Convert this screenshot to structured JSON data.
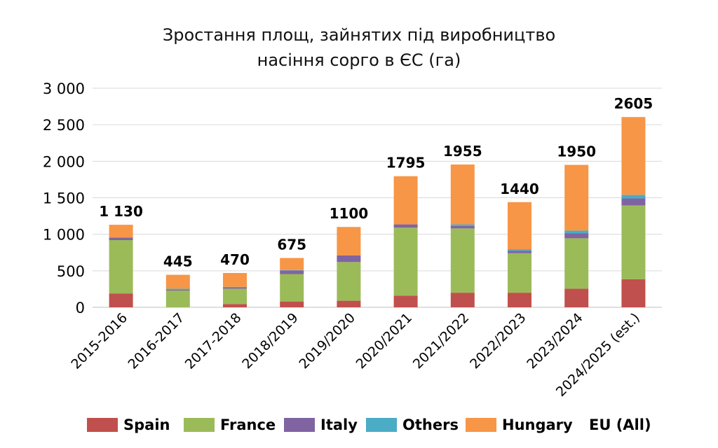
{
  "chart_data": {
    "type": "bar",
    "stacked": true,
    "title_line1": "Зростання площ, зайнятих під виробництво",
    "title_line2": "насіння сорго в ЄС (га)",
    "categories": [
      "2015-2016",
      "2016-2017",
      "2017-2018",
      "2018/2019",
      "2019/2020",
      "2020/2021",
      "2021/2022",
      "2022/2023",
      "2023/2024",
      "2024/2025 (est.)"
    ],
    "series": [
      {
        "name": "Spain",
        "color": "#c0504d",
        "values": [
          190,
          0,
          45,
          80,
          90,
          160,
          200,
          200,
          255,
          385
        ]
      },
      {
        "name": "France",
        "color": "#9bbb59",
        "values": [
          730,
          230,
          210,
          375,
          530,
          930,
          880,
          540,
          690,
          1010
        ]
      },
      {
        "name": "Italy",
        "color": "#8064a2",
        "values": [
          35,
          10,
          20,
          50,
          90,
          45,
          35,
          35,
          70,
          95
        ]
      },
      {
        "name": "Others",
        "color": "#4bacc6",
        "values": [
          0,
          15,
          5,
          5,
          0,
          0,
          20,
          20,
          35,
          50
        ]
      },
      {
        "name": "Hungary",
        "color": "#f79646",
        "values": [
          175,
          190,
          190,
          165,
          390,
          660,
          820,
          645,
          900,
          1065
        ]
      }
    ],
    "totals_label": "EU (All)",
    "totals": [
      "1 130",
      "445",
      "470",
      "675",
      "1100",
      "1795",
      "1955",
      "1440",
      "1950",
      "2605"
    ],
    "y_ticks": [
      "3 000",
      "2 500",
      "2 000",
      "1 500",
      "1 000",
      "500",
      "0"
    ],
    "ylim": [
      0,
      3000
    ],
    "grid": true,
    "legend_position": "bottom"
  }
}
